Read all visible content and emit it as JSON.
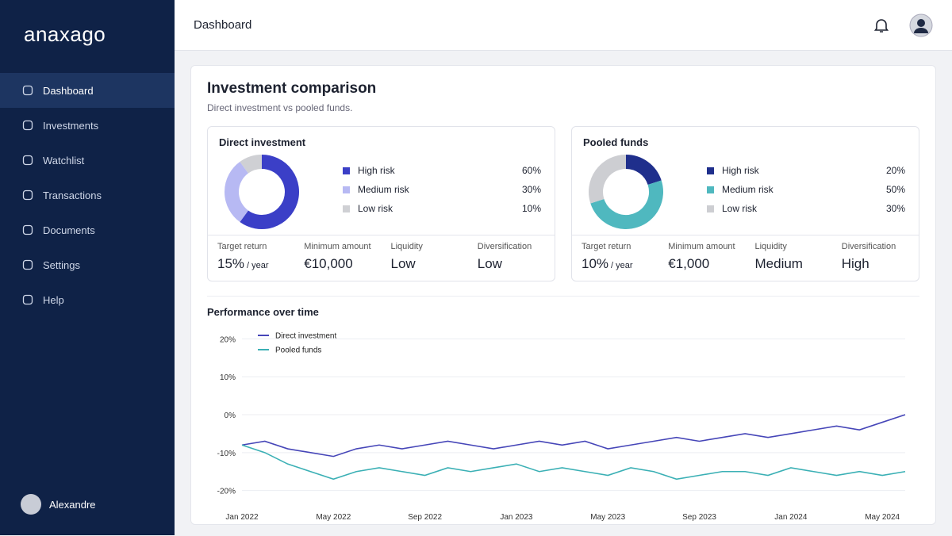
{
  "sidebar": {
    "logo": "anaxago",
    "nav": [
      "Dashboard",
      "Investments",
      "Watchlist",
      "Transactions",
      "Documents",
      "Settings",
      "Help"
    ],
    "user": "Alexandre"
  },
  "header": {
    "title": "Dashboard"
  },
  "comparison": {
    "title": "Investment comparison",
    "subtitle": "Direct investment vs pooled funds."
  },
  "chart_data": [
    {
      "type": "pie",
      "title": "Direct investment",
      "categories": [
        "High risk",
        "Medium risk",
        "Low risk"
      ],
      "values": [
        60,
        30,
        10
      ],
      "value_labels": [
        "60%",
        "30%",
        "10%"
      ],
      "colors": [
        "#3b3fc7",
        "#b7b9f3",
        "#cfd0d4"
      ],
      "stats": [
        {
          "label": "Target return",
          "value": "15%",
          "unit": "/ year"
        },
        {
          "label": "Minimum amount",
          "value": "€10,000"
        },
        {
          "label": "Liquidity",
          "value": "Low"
        },
        {
          "label": "Diversification",
          "value": "Low"
        }
      ]
    },
    {
      "type": "pie",
      "title": "Pooled funds",
      "categories": [
        "High risk",
        "Medium risk",
        "Low risk"
      ],
      "values": [
        20,
        50,
        30
      ],
      "value_labels": [
        "20%",
        "50%",
        "30%"
      ],
      "colors": [
        "#1f2f8c",
        "#4fb8bf",
        "#cdced2"
      ],
      "stats": [
        {
          "label": "Target return",
          "value": "10%",
          "unit": "/ year"
        },
        {
          "label": "Minimum amount",
          "value": "€1,000"
        },
        {
          "label": "Liquidity",
          "value": "Medium"
        },
        {
          "label": "Diversification",
          "value": "High"
        }
      ]
    },
    {
      "type": "line",
      "title": "Performance over time",
      "categories": [
        "Jan 2022",
        null,
        null,
        null,
        "May 2022",
        null,
        null,
        null,
        "Sep 2022",
        null,
        null,
        null,
        "Jan 2023",
        null,
        null,
        null,
        "May 2023",
        null,
        null,
        null,
        "Sep 2023",
        null,
        null,
        null,
        "Jan 2024",
        null,
        null,
        null,
        "May 2024",
        null
      ],
      "series": [
        {
          "name": "Direct investment",
          "color": "#4646b8",
          "values": [
            -8,
            -7,
            -9,
            -10,
            -11,
            -9,
            -8,
            -9,
            -8,
            -7,
            -8,
            -9,
            -8,
            -7,
            -8,
            -7,
            -9,
            -8,
            -7,
            -6,
            -7,
            -6,
            -5,
            -6,
            -5,
            -4,
            -3,
            -4,
            -2,
            0
          ]
        },
        {
          "name": "Pooled funds",
          "color": "#3bb0b5",
          "values": [
            -8,
            -10,
            -13,
            -15,
            -17,
            -15,
            -14,
            -15,
            -16,
            -14,
            -15,
            -14,
            -13,
            -15,
            -14,
            -15,
            -16,
            -14,
            -15,
            -17,
            -16,
            -15,
            -15,
            -16,
            -14,
            -15,
            -16,
            -15,
            -16,
            -15
          ]
        }
      ],
      "ylim": [
        -23,
        23
      ],
      "yticks": [
        {
          "value": 20,
          "label": "20%"
        },
        {
          "value": 10,
          "label": "10%"
        },
        {
          "value": 0,
          "label": "0%"
        },
        {
          "value": -10,
          "label": "-10%"
        },
        {
          "value": -20,
          "label": "-20%"
        }
      ]
    }
  ]
}
